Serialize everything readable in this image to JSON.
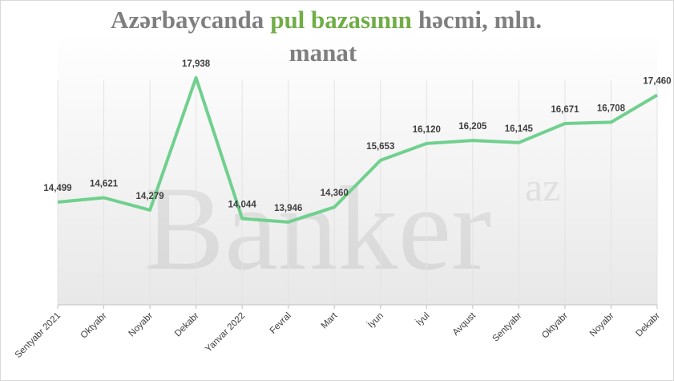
{
  "chart_data": {
    "type": "line",
    "title_parts": [
      "Azərbaycanda",
      "pul bazasının",
      "həcmi, mln. manat"
    ],
    "title_highlight_color": "#70ad47",
    "watermark": "Banker",
    "watermark_sup": "az",
    "categories": [
      "Sentyabr  2021",
      "Oktyabr",
      "Noyabr",
      "Dekabr",
      "Yanvar  2022",
      "Fevral",
      "Mart",
      "İyun",
      "İyul",
      "Avqust",
      "Sentyabr",
      "Oktyabr",
      "Noyabr",
      "Dekabr"
    ],
    "values": [
      14499,
      14621,
      14279,
      17938,
      14044,
      13946,
      14360,
      15653,
      16120,
      16205,
      16145,
      16671,
      16708,
      17460
    ],
    "value_labels": [
      "14,499",
      "14,621",
      "14,279",
      "17,938",
      "14,044",
      "13,946",
      "14,360",
      "15,653",
      "16,120",
      "16,205",
      "16,145",
      "16,671",
      "16,708",
      "17,460"
    ],
    "color": "#70d08e",
    "ylim": [
      11660,
      19200
    ],
    "grid": true
  }
}
